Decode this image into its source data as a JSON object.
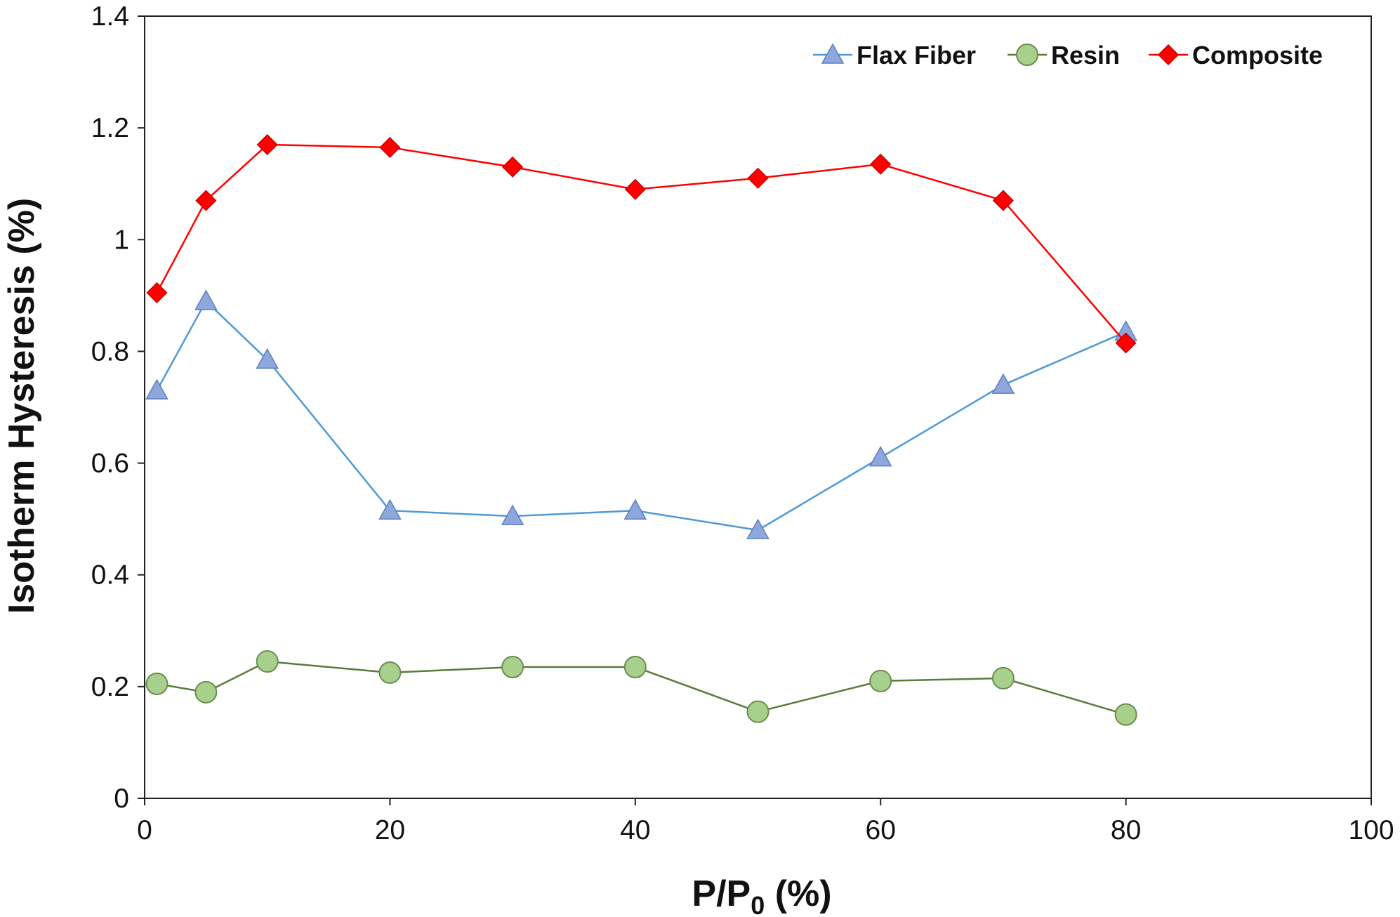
{
  "chart_data": {
    "type": "line",
    "xlabel_main": "P/P",
    "xlabel_sub": "0",
    "xlabel_tail": " (%)",
    "ylabel": "Isotherm Hysteresis (%)",
    "xlim": [
      0,
      100
    ],
    "ylim": [
      0,
      1.4
    ],
    "x_ticks": [
      "0",
      "20",
      "40",
      "60",
      "80",
      "100"
    ],
    "y_ticks": [
      "0",
      "0.2",
      "0.4",
      "0.6",
      "0.8",
      "1",
      "1.2",
      "1.4"
    ],
    "grid": false,
    "legend_position": "top-right",
    "x": [
      1,
      5,
      10,
      20,
      30,
      40,
      50,
      60,
      70,
      80
    ],
    "series": [
      {
        "name": "Flax Fiber",
        "marker": "triangle",
        "line_color": "#4f9ad6",
        "marker_fill": "#8ea7dd",
        "marker_stroke": "#5b7fbf",
        "values": [
          0.73,
          0.89,
          0.785,
          0.515,
          0.505,
          0.515,
          0.48,
          0.61,
          0.74,
          0.835
        ]
      },
      {
        "name": "Resin",
        "marker": "circle",
        "line_color": "#5a7a3c",
        "marker_fill": "#a8d08d",
        "marker_stroke": "#6a8c4e",
        "values": [
          0.205,
          0.19,
          0.245,
          0.225,
          0.235,
          0.235,
          0.155,
          0.21,
          0.215,
          0.15
        ]
      },
      {
        "name": "Composite",
        "marker": "diamond",
        "line_color": "#ff0000",
        "marker_fill": "#ff0000",
        "marker_stroke": "#cc0000",
        "values": [
          0.905,
          1.07,
          1.17,
          1.165,
          1.13,
          1.09,
          1.11,
          1.135,
          1.07,
          0.815
        ]
      }
    ]
  }
}
